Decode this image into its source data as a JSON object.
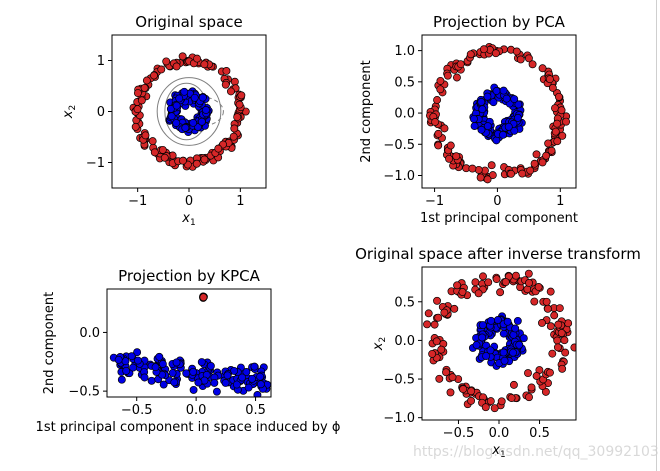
{
  "figure": {
    "watermark": "https://blog.csdn.net/qq_30992103"
  },
  "chart_data": [
    {
      "id": "original",
      "type": "scatter",
      "title": "Original space",
      "xlabel_base": "x",
      "xlabel_sub": "1",
      "ylabel_base": "x",
      "ylabel_sub": "2",
      "xlim": [
        -1.5,
        1.5
      ],
      "ylim": [
        -1.5,
        1.5
      ],
      "xticks": [
        -1,
        0,
        1
      ],
      "yticks": [
        -1,
        0,
        1
      ],
      "xticklabels": [
        "−1",
        "0",
        "1"
      ],
      "yticklabels": [
        "−1",
        "0",
        "1"
      ],
      "series": [
        {
          "name": "outer circle",
          "color": "#d62728",
          "shape": "ring",
          "radius": 1.0,
          "center": [
            0,
            0
          ],
          "noise": 0.05,
          "count": 160
        },
        {
          "name": "inner circle",
          "color": "#0000e6",
          "shape": "ring",
          "radius": 0.3,
          "center": [
            0,
            0
          ],
          "noise": 0.05,
          "count": 160
        }
      ],
      "contours": {
        "color": "#7f7f7f",
        "note": "decision-function contour lines"
      }
    },
    {
      "id": "pca",
      "type": "scatter",
      "title": "Projection by PCA",
      "xlabel": "1st principal component",
      "ylabel": "2nd component",
      "xlim": [
        -1.2,
        1.25
      ],
      "ylim": [
        -1.2,
        1.25
      ],
      "xticks": [
        -1,
        0,
        1
      ],
      "yticks": [
        -1.0,
        -0.5,
        0.0,
        0.5,
        1.0
      ],
      "xticklabels": [
        "−1",
        "0",
        "1"
      ],
      "yticklabels": [
        "−1.0",
        "−0.5",
        "0.0",
        "0.5",
        "1.0"
      ],
      "series": [
        {
          "name": "outer circle",
          "color": "#d62728",
          "shape": "ring",
          "radius": 1.0,
          "center": [
            0,
            0
          ],
          "noise": 0.05,
          "count": 160
        },
        {
          "name": "inner circle",
          "color": "#0000e6",
          "shape": "ring",
          "radius": 0.3,
          "center": [
            0,
            0
          ],
          "noise": 0.05,
          "count": 160
        }
      ]
    },
    {
      "id": "kpca",
      "type": "scatter",
      "title": "Projection by KPCA",
      "xlabel": "1st principal component in space induced by ϕ",
      "ylabel": "2nd component",
      "xlim": [
        -0.75,
        0.63
      ],
      "ylim": [
        -0.55,
        0.37
      ],
      "xticks": [
        -0.5,
        0.0,
        0.5
      ],
      "yticks": [
        -0.5,
        0.0
      ],
      "xticklabels": [
        "−0.5",
        "0.0",
        "0.5"
      ],
      "yticklabels": [
        "−0.5",
        "0.0"
      ],
      "series": [
        {
          "name": "outer circle",
          "color": "#d62728",
          "shape": "cluster",
          "center": [
            0.06,
            0.3
          ],
          "count": 6
        },
        {
          "name": "inner circle",
          "color": "#0000e6",
          "shape": "band",
          "x_range": [
            -0.7,
            0.6
          ],
          "y_left": -0.25,
          "y_right": -0.43,
          "count": 160
        }
      ]
    },
    {
      "id": "inverse",
      "type": "scatter",
      "title": "Original space after inverse transform",
      "xlabel_base": "x",
      "xlabel_sub": "1",
      "ylabel_base": "x",
      "ylabel_sub": "2",
      "xlim": [
        -0.95,
        0.95
      ],
      "ylim": [
        -1.03,
        0.95
      ],
      "xticks": [
        -0.5,
        0.0,
        0.5
      ],
      "yticks": [
        -1.0,
        -0.5,
        0.0,
        0.5
      ],
      "xticklabels": [
        "−0.5",
        "0.0",
        "0.5"
      ],
      "yticklabels": [
        "−1.0",
        "−0.5",
        "0.0",
        "0.5"
      ],
      "series": [
        {
          "name": "outer circle",
          "color": "#d62728",
          "shape": "ring",
          "radius": 0.78,
          "center": [
            0,
            0
          ],
          "noise": 0.07,
          "count": 160
        },
        {
          "name": "inner circle",
          "color": "#0000e6",
          "shape": "ring",
          "radius": 0.22,
          "center": [
            0,
            0
          ],
          "noise": 0.05,
          "count": 160
        }
      ]
    }
  ]
}
